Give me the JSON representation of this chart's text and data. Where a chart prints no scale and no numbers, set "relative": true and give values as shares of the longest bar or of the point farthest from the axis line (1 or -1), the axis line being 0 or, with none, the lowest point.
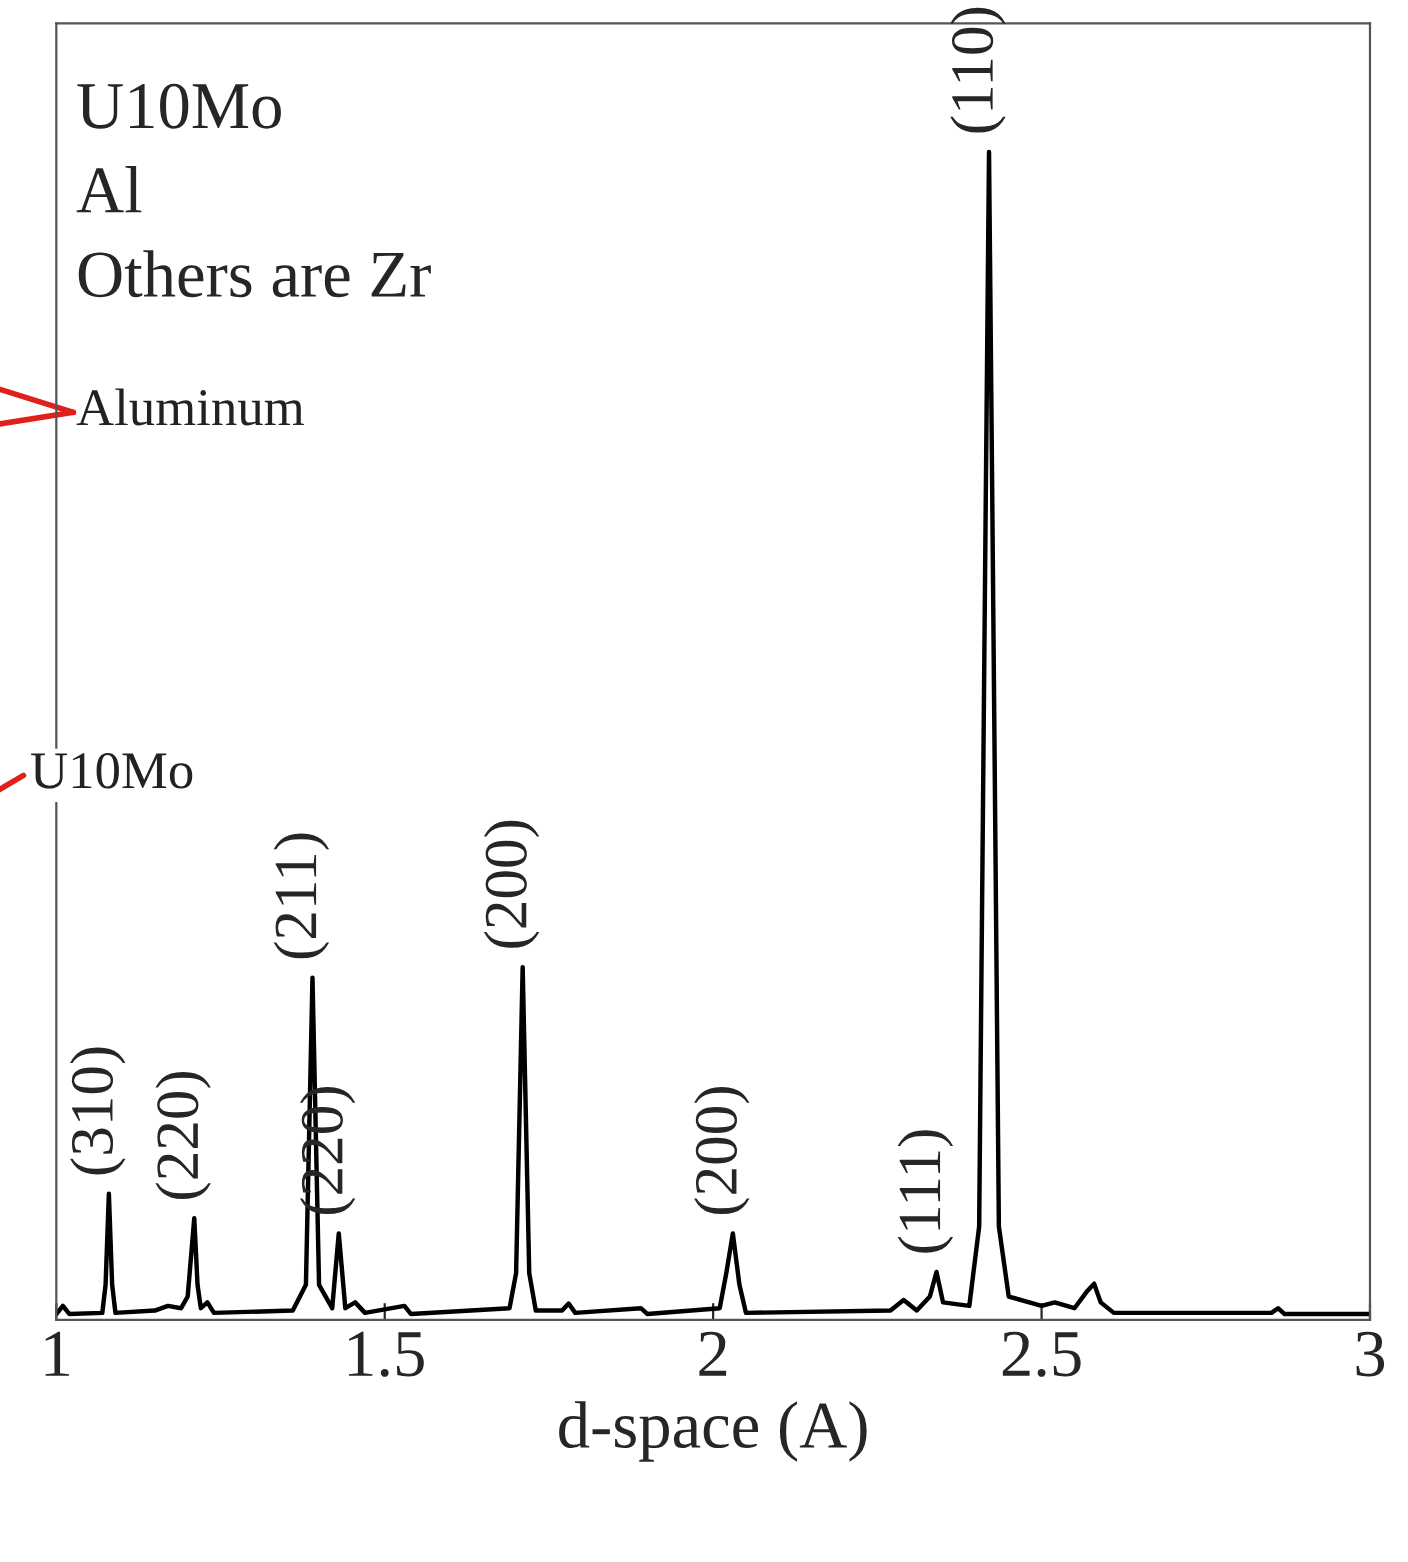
{
  "chart_data": {
    "type": "line",
    "relative": true,
    "xlabel": "d-space (A)",
    "xlim": [
      1,
      3
    ],
    "xticks": [
      1,
      1.5,
      2,
      2.5,
      3
    ],
    "grid": false,
    "marker": "none",
    "line_style": "solid",
    "series": [
      {
        "color": "#000000",
        "x": [
          1.0,
          1.01,
          1.02,
          1.07,
          1.075,
          1.08,
          1.085,
          1.09,
          1.15,
          1.17,
          1.19,
          1.2,
          1.21,
          1.215,
          1.22,
          1.23,
          1.24,
          1.36,
          1.38,
          1.39,
          1.4,
          1.42,
          1.43,
          1.44,
          1.455,
          1.47,
          1.53,
          1.54,
          1.69,
          1.7,
          1.71,
          1.72,
          1.73,
          1.77,
          1.78,
          1.79,
          1.89,
          1.9,
          2.01,
          2.02,
          2.03,
          2.04,
          2.05,
          2.27,
          2.29,
          2.31,
          2.33,
          2.34,
          2.35,
          2.39,
          2.405,
          2.415,
          2.42,
          2.425,
          2.435,
          2.45,
          2.5,
          2.52,
          2.55,
          2.57,
          2.58,
          2.59,
          2.61,
          2.85,
          2.86,
          2.87,
          3.0
        ],
        "values": [
          0.005,
          0.012,
          0.005,
          0.006,
          0.03,
          0.108,
          0.03,
          0.006,
          0.008,
          0.012,
          0.01,
          0.02,
          0.087,
          0.03,
          0.01,
          0.015,
          0.006,
          0.008,
          0.03,
          0.293,
          0.03,
          0.01,
          0.074,
          0.01,
          0.015,
          0.006,
          0.012,
          0.005,
          0.01,
          0.04,
          0.302,
          0.04,
          0.008,
          0.008,
          0.014,
          0.006,
          0.01,
          0.005,
          0.01,
          0.04,
          0.074,
          0.03,
          0.006,
          0.008,
          0.017,
          0.008,
          0.02,
          0.041,
          0.015,
          0.012,
          0.08,
          0.7,
          1.0,
          0.7,
          0.08,
          0.02,
          0.012,
          0.015,
          0.01,
          0.025,
          0.031,
          0.015,
          0.006,
          0.006,
          0.01,
          0.005,
          0.005
        ]
      }
    ],
    "annotations": [
      {
        "text": "U10Mo"
      },
      {
        "text": "Al"
      },
      {
        "text": "Others are Zr"
      },
      "Aluminum",
      "U10Mo",
      {
        "text": "(310)",
        "x": 1.08,
        "y": 0.108
      },
      {
        "text": "(220)",
        "x": 1.21,
        "y": 0.087
      },
      {
        "text": "(211)",
        "x": 1.39,
        "y": 0.293
      },
      {
        "text": "(220)",
        "x": 1.43,
        "y": 0.074
      },
      {
        "text": "(200)",
        "x": 1.71,
        "y": 0.302
      },
      {
        "text": "(200)",
        "x": 2.03,
        "y": 0.074
      },
      {
        "text": "(111)",
        "x": 2.34,
        "y": 0.041
      },
      {
        "text": "(110)",
        "x": 2.42,
        "y": 1.0
      }
    ]
  }
}
